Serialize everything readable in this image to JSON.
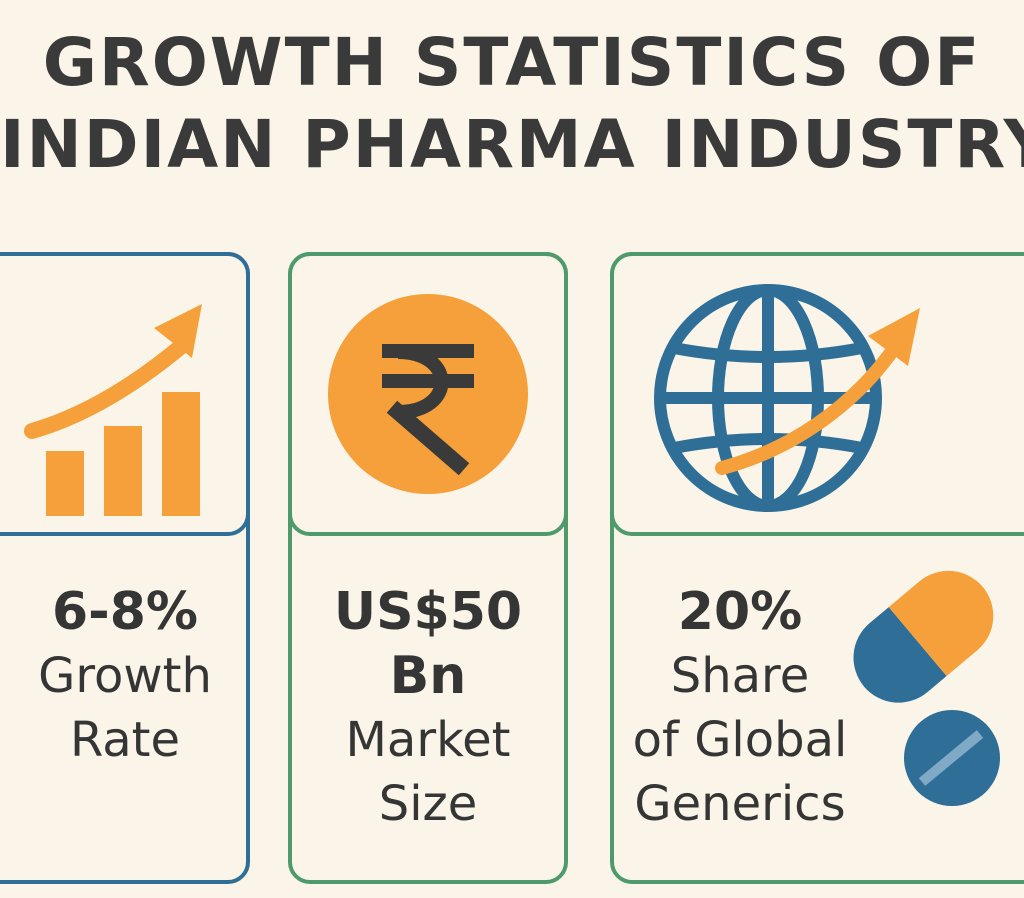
{
  "title": {
    "line1": "GROWTH STATISTICS OF",
    "line2": "INDIAN PHARMA INDUSTRY"
  },
  "colors": {
    "background": "#faf5e8",
    "blue": "#2f6f97",
    "green": "#4e9a6c",
    "orange": "#f5a03a",
    "text": "#383838"
  },
  "cards": [
    {
      "icon": "growth-bar-chart-icon",
      "value": "6-8%",
      "label_line1": "Growth",
      "label_line2": "Rate"
    },
    {
      "icon": "rupee-coin-icon",
      "value_line1": "US$50",
      "value_line2": "Bn",
      "label_line1": "Market",
      "label_line2": "Size"
    },
    {
      "icon": "globe-arrow-icon",
      "side_icon": "pills-icon",
      "value": "20%",
      "label_line1": "Share",
      "label_line2": "of Global",
      "label_line3": "Generics"
    }
  ]
}
